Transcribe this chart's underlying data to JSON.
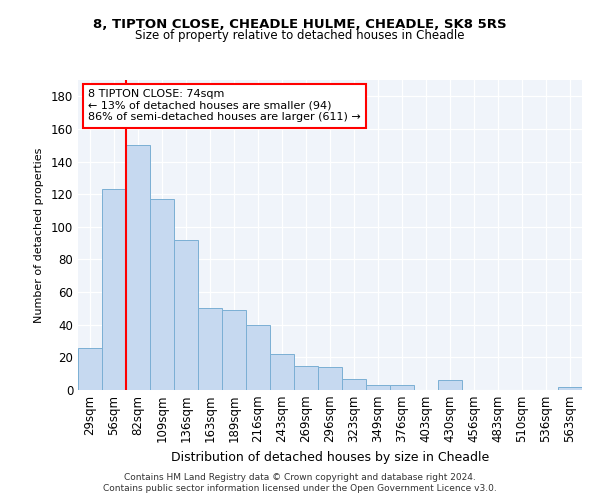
{
  "title1": "8, TIPTON CLOSE, CHEADLE HULME, CHEADLE, SK8 5RS",
  "title2": "Size of property relative to detached houses in Cheadle",
  "xlabel": "Distribution of detached houses by size in Cheadle",
  "ylabel": "Number of detached properties",
  "categories": [
    "29sqm",
    "56sqm",
    "82sqm",
    "109sqm",
    "136sqm",
    "163sqm",
    "189sqm",
    "216sqm",
    "243sqm",
    "269sqm",
    "296sqm",
    "323sqm",
    "349sqm",
    "376sqm",
    "403sqm",
    "430sqm",
    "456sqm",
    "483sqm",
    "510sqm",
    "536sqm",
    "563sqm"
  ],
  "values": [
    26,
    123,
    150,
    117,
    92,
    50,
    49,
    40,
    22,
    15,
    14,
    7,
    3,
    3,
    0,
    6,
    0,
    0,
    0,
    0,
    2
  ],
  "bar_color": "#c6d9f0",
  "bar_edge_color": "#7bafd4",
  "vline_color": "red",
  "vline_x": 2.0,
  "annotation_text": "8 TIPTON CLOSE: 74sqm\n← 13% of detached houses are smaller (94)\n86% of semi-detached houses are larger (611) →",
  "annotation_box_color": "white",
  "annotation_box_edge": "red",
  "footer1": "Contains HM Land Registry data © Crown copyright and database right 2024.",
  "footer2": "Contains public sector information licensed under the Open Government Licence v3.0.",
  "ylim": [
    0,
    190
  ],
  "yticks": [
    0,
    20,
    40,
    60,
    80,
    100,
    120,
    140,
    160,
    180
  ],
  "fig_bg_color": "#ffffff",
  "plot_bg_color": "#f0f4fa"
}
